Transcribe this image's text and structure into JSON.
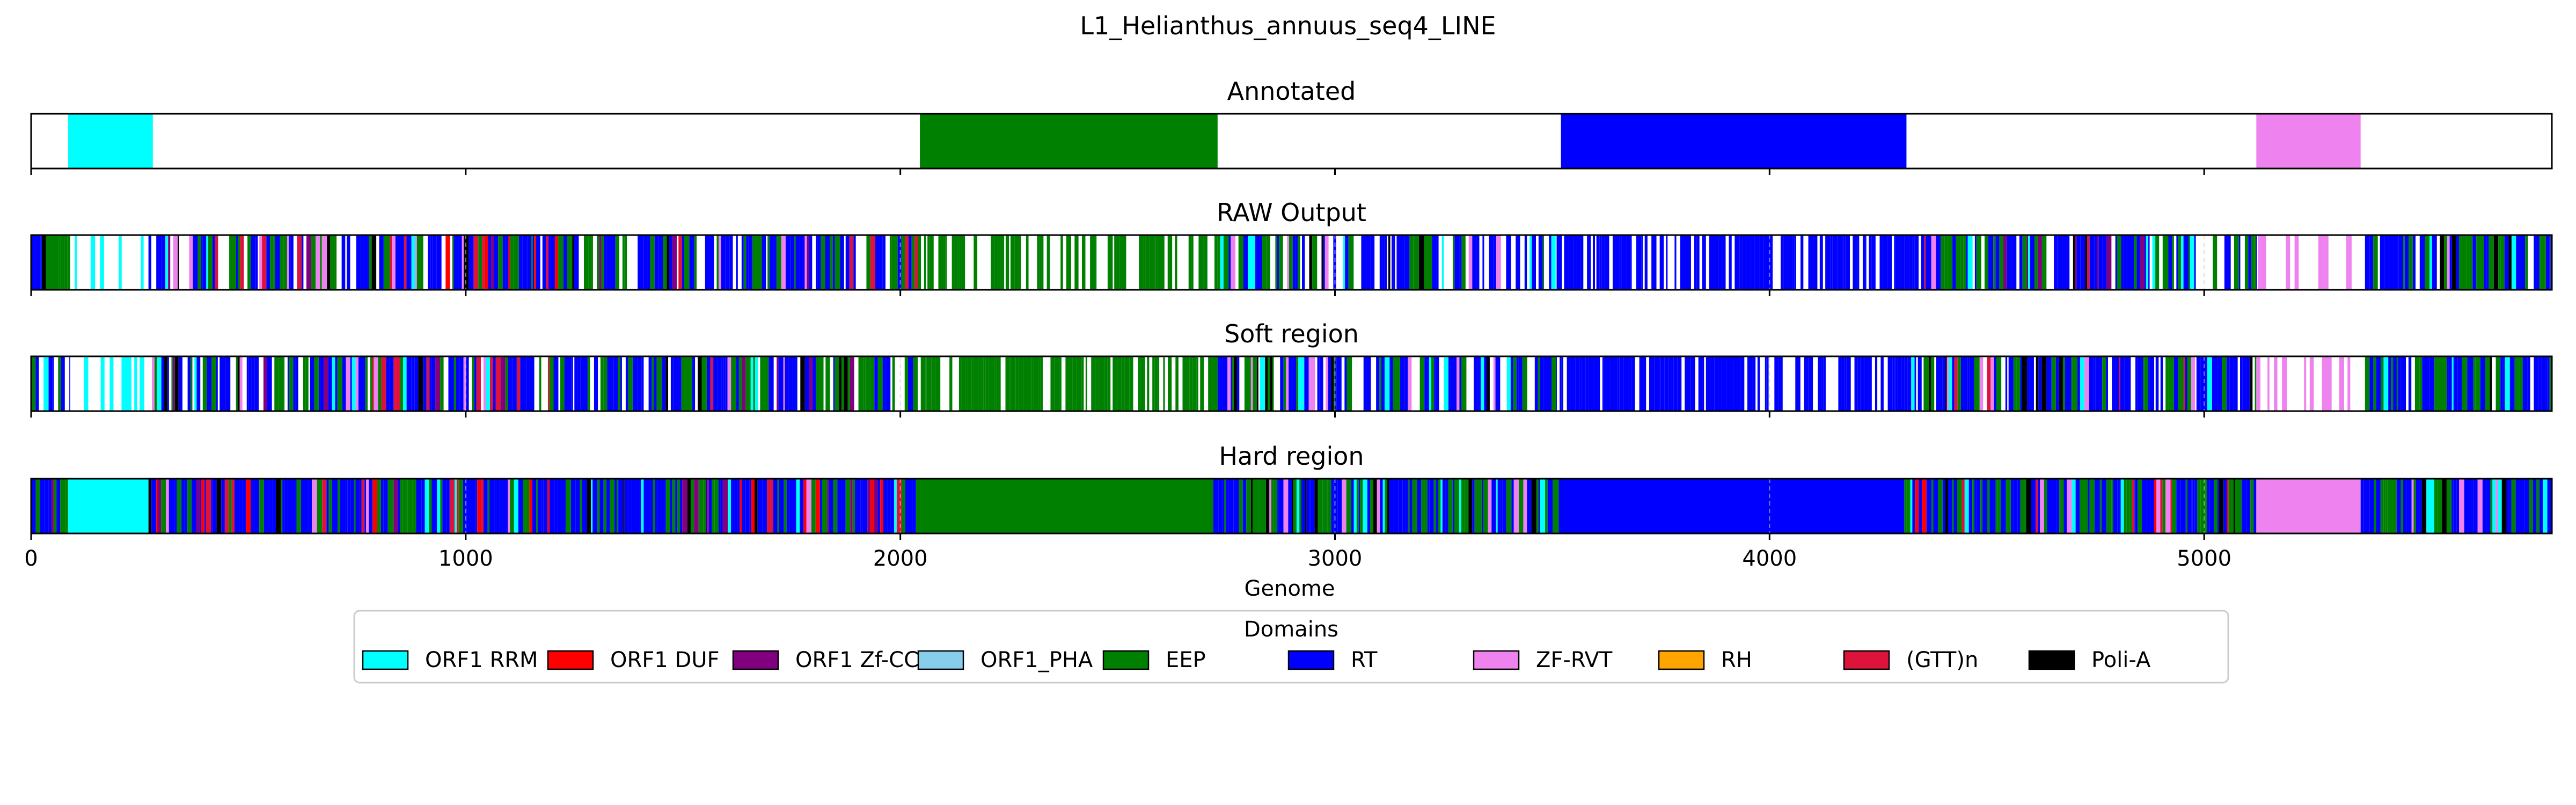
{
  "chart_data": {
    "type": "domain-track",
    "title": "L1_Helianthus_annuus_seq4_LINE",
    "xlabel": "Genome",
    "xlim": [
      0,
      5800
    ],
    "xticks": [
      0,
      1000,
      2000,
      3000,
      4000,
      5000
    ],
    "xtick_labels": [
      "0",
      "1000",
      "2000",
      "3000",
      "4000",
      "5000"
    ],
    "legend": {
      "title": "Domains",
      "placement": "bottom-center",
      "entries": [
        {
          "name": "ORF1 RRM",
          "color": "#00ffff"
        },
        {
          "name": "ORF1 DUF",
          "color": "#ff0000"
        },
        {
          "name": "ORF1 Zf-CCHC",
          "color": "#800080"
        },
        {
          "name": "ORF1_PHA",
          "color": "#87ceeb"
        },
        {
          "name": "EEP",
          "color": "#008000"
        },
        {
          "name": "RT",
          "color": "#0000ff"
        },
        {
          "name": "ZF-RVT",
          "color": "#ee82ee"
        },
        {
          "name": "RH",
          "color": "#ffa500"
        },
        {
          "name": "(GTT)n",
          "color": "#dc143c"
        },
        {
          "name": "Poli-A",
          "color": "#000000"
        }
      ]
    },
    "tracks": [
      {
        "title": "Annotated",
        "segments": [
          {
            "domain": "ORF1 RRM",
            "start": 85,
            "end": 280
          },
          {
            "domain": "EEP",
            "start": 2045,
            "end": 2730
          },
          {
            "domain": "RT",
            "start": 3520,
            "end": 4315
          },
          {
            "domain": "ZF-RVT",
            "start": 5120,
            "end": 5360
          }
        ]
      },
      {
        "title": "RAW Output",
        "base": "white",
        "regions": [
          {
            "start": 0,
            "end": 90,
            "palette": [
              "RT",
              "EEP",
              "ORF1 RRM",
              "Poli-A"
            ],
            "density": 0.9
          },
          {
            "start": 90,
            "end": 270,
            "palette": [
              "ORF1 RRM"
            ],
            "density": 0.35
          },
          {
            "start": 270,
            "end": 2040,
            "palette": [
              "RT",
              "EEP",
              "ORF1 RRM",
              "ZF-RVT",
              "ORF1 Zf-CCHC",
              "(GTT)n",
              "Poli-A",
              "ORF1 DUF"
            ],
            "density": 0.82
          },
          {
            "start": 2040,
            "end": 2730,
            "palette": [
              "EEP"
            ],
            "density": 0.68
          },
          {
            "start": 2730,
            "end": 3510,
            "palette": [
              "RT",
              "EEP",
              "ORF1 RRM",
              "ZF-RVT",
              "Poli-A"
            ],
            "density": 0.8
          },
          {
            "start": 3510,
            "end": 4310,
            "palette": [
              "RT"
            ],
            "density": 0.74
          },
          {
            "start": 4310,
            "end": 5120,
            "palette": [
              "RT",
              "EEP",
              "ORF1 RRM",
              "ZF-RVT",
              "(GTT)n",
              "Poli-A",
              "ORF1 Zf-CCHC"
            ],
            "density": 0.85
          },
          {
            "start": 5120,
            "end": 5370,
            "palette": [
              "ZF-RVT"
            ],
            "density": 0.45
          },
          {
            "start": 5370,
            "end": 5800,
            "palette": [
              "RT",
              "EEP",
              "ORF1 RRM",
              "Poli-A",
              "ZF-RVT"
            ],
            "density": 0.85
          }
        ]
      },
      {
        "title": "Soft region",
        "base": "white",
        "regions": [
          {
            "start": 0,
            "end": 90,
            "palette": [
              "RT",
              "EEP",
              "ORF1 RRM",
              "Poli-A"
            ],
            "density": 0.9
          },
          {
            "start": 90,
            "end": 270,
            "palette": [
              "ORF1 RRM"
            ],
            "density": 0.35
          },
          {
            "start": 270,
            "end": 2040,
            "palette": [
              "RT",
              "EEP",
              "ORF1 RRM",
              "ZF-RVT",
              "ORF1 Zf-CCHC",
              "(GTT)n",
              "Poli-A"
            ],
            "density": 0.82
          },
          {
            "start": 2040,
            "end": 2730,
            "palette": [
              "EEP"
            ],
            "density": 0.68
          },
          {
            "start": 2730,
            "end": 3510,
            "palette": [
              "RT",
              "EEP",
              "ORF1 RRM",
              "ZF-RVT",
              "Poli-A"
            ],
            "density": 0.8
          },
          {
            "start": 3510,
            "end": 4310,
            "palette": [
              "RT"
            ],
            "density": 0.74
          },
          {
            "start": 4310,
            "end": 5120,
            "palette": [
              "RT",
              "EEP",
              "ORF1 RRM",
              "ZF-RVT",
              "(GTT)n",
              "Poli-A"
            ],
            "density": 0.85
          },
          {
            "start": 5120,
            "end": 5370,
            "palette": [
              "ZF-RVT"
            ],
            "density": 0.45
          },
          {
            "start": 5370,
            "end": 5800,
            "palette": [
              "RT",
              "EEP",
              "ORF1 RRM",
              "Poli-A",
              "ZF-RVT"
            ],
            "density": 0.85
          }
        ]
      },
      {
        "title": "Hard region",
        "base": "white",
        "regions": [
          {
            "start": 0,
            "end": 85,
            "palette": [
              "RT",
              "EEP",
              "Poli-A",
              "ORF1 Zf-CCHC"
            ],
            "density": 1.0
          },
          {
            "start": 85,
            "end": 270,
            "solid": "ORF1 RRM"
          },
          {
            "start": 270,
            "end": 2045,
            "palette": [
              "RT",
              "EEP",
              "ORF1 RRM",
              "ZF-RVT",
              "ORF1 Zf-CCHC",
              "(GTT)n",
              "Poli-A",
              "ORF1 DUF"
            ],
            "density": 1.0
          },
          {
            "start": 2045,
            "end": 2720,
            "solid": "EEP"
          },
          {
            "start": 2720,
            "end": 3515,
            "palette": [
              "RT",
              "EEP",
              "ORF1 RRM",
              "ZF-RVT",
              "Poli-A"
            ],
            "density": 1.0
          },
          {
            "start": 3515,
            "end": 4310,
            "solid": "RT"
          },
          {
            "start": 4310,
            "end": 5120,
            "palette": [
              "RT",
              "EEP",
              "ORF1 RRM",
              "ZF-RVT",
              "(GTT)n",
              "Poli-A",
              "ORF1 DUF"
            ],
            "density": 1.0
          },
          {
            "start": 5120,
            "end": 5360,
            "solid": "ZF-RVT"
          },
          {
            "start": 5360,
            "end": 5800,
            "palette": [
              "RT",
              "EEP",
              "ORF1 RRM",
              "Poli-A",
              "ZF-RVT"
            ],
            "density": 1.0
          }
        ]
      }
    ]
  }
}
